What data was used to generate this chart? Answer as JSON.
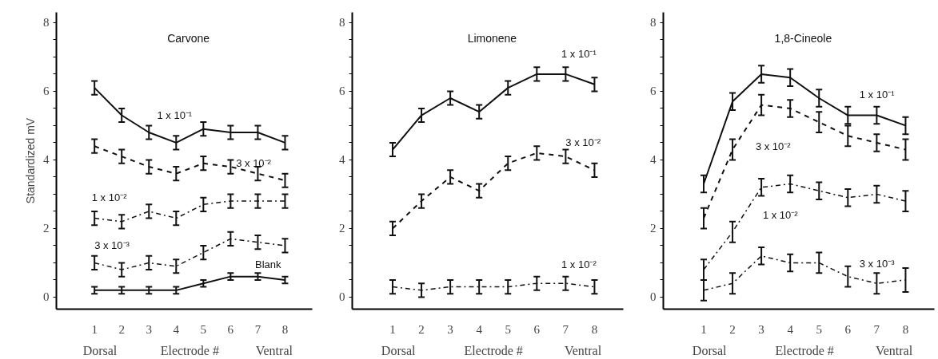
{
  "chart_data": [
    {
      "type": "line",
      "title": "Carvone",
      "ylabel": "Standardized mV",
      "x": [
        1,
        2,
        3,
        4,
        5,
        6,
        7,
        8
      ],
      "xlim": [
        -0.4,
        9.0
      ],
      "ylim": [
        -0.35,
        8.3
      ],
      "xticks": [
        1,
        2,
        3,
        4,
        5,
        6,
        7,
        8
      ],
      "yticks": [
        0,
        {
          "value": 0.5,
          "label": null
        },
        {
          "value": 1,
          "label": null
        },
        {
          "value": 1.5,
          "label": null
        },
        2,
        {
          "value": 2.5,
          "label": null
        },
        {
          "value": 3,
          "label": null
        },
        {
          "value": 3.5,
          "label": null
        },
        4,
        {
          "value": 4.5,
          "label": null
        },
        {
          "value": 5,
          "label": null
        },
        {
          "value": 5.5,
          "label": null
        },
        6,
        {
          "value": 6.5,
          "label": null
        },
        {
          "value": 7,
          "label": null
        },
        {
          "value": 7.5,
          "label": null
        },
        8
      ],
      "series": [
        {
          "name": "1 x 10⁻¹",
          "color": "#111111",
          "line_style": "solid",
          "values": [
            6.1,
            5.3,
            4.8,
            4.5,
            4.9,
            4.8,
            4.8,
            4.5
          ],
          "errors": [
            0.2,
            0.2,
            0.2,
            0.2,
            0.2,
            0.2,
            0.2,
            0.2
          ]
        },
        {
          "name": "3 x 10⁻²",
          "color": "#111111",
          "line_style": "dashed",
          "values": [
            4.4,
            4.1,
            3.8,
            3.6,
            3.9,
            3.8,
            3.6,
            3.4
          ],
          "errors": [
            0.2,
            0.2,
            0.2,
            0.2,
            0.2,
            0.2,
            0.2,
            0.2
          ]
        },
        {
          "name": "1 x 10⁻²",
          "color": "#111111",
          "line_style": "dotted",
          "values": [
            2.3,
            2.2,
            2.5,
            2.3,
            2.7,
            2.8,
            2.8,
            2.8
          ],
          "errors": [
            0.2,
            0.2,
            0.2,
            0.2,
            0.2,
            0.2,
            0.2,
            0.2
          ]
        },
        {
          "name": "3 x 10⁻³",
          "color": "#111111",
          "line_style": "dotted",
          "values": [
            1.0,
            0.8,
            1.0,
            0.9,
            1.3,
            1.7,
            1.6,
            1.5
          ],
          "errors": [
            0.2,
            0.2,
            0.2,
            0.2,
            0.2,
            0.2,
            0.2,
            0.2
          ]
        },
        {
          "name": "Blank",
          "color": "#111111",
          "line_style": "solid",
          "values": [
            0.2,
            0.2,
            0.2,
            0.2,
            0.4,
            0.6,
            0.6,
            0.5
          ],
          "errors": [
            0.1,
            0.1,
            0.1,
            0.1,
            0.1,
            0.1,
            0.1,
            0.1
          ]
        }
      ],
      "xlabel": "Electrode #",
      "annotations": [
        "Dorsal",
        "Ventral"
      ]
    },
    {
      "type": "line",
      "title": "Limonene",
      "x": [
        1,
        2,
        3,
        4,
        5,
        6,
        7,
        8
      ],
      "xlim": [
        -0.4,
        9.0
      ],
      "ylim": [
        -0.35,
        8.3
      ],
      "xticks": [
        1,
        2,
        3,
        4,
        5,
        6,
        7,
        8
      ],
      "yticks": [
        0,
        {
          "value": 0.5,
          "label": null
        },
        {
          "value": 1,
          "label": null
        },
        {
          "value": 1.5,
          "label": null
        },
        2,
        {
          "value": 2.5,
          "label": null
        },
        {
          "value": 3,
          "label": null
        },
        {
          "value": 3.5,
          "label": null
        },
        4,
        {
          "value": 4.5,
          "label": null
        },
        {
          "value": 5,
          "label": null
        },
        {
          "value": 5.5,
          "label": null
        },
        6,
        {
          "value": 6.5,
          "label": null
        },
        {
          "value": 7,
          "label": null
        },
        {
          "value": 7.5,
          "label": null
        },
        8
      ],
      "series": [
        {
          "name": "1 x 10⁻¹",
          "color": "#111111",
          "line_style": "solid",
          "values": [
            4.3,
            5.3,
            5.8,
            5.4,
            6.1,
            6.5,
            6.5,
            6.2
          ],
          "errors": [
            0.2,
            0.2,
            0.2,
            0.2,
            0.2,
            0.2,
            0.2,
            0.2
          ]
        },
        {
          "name": "3 x 10⁻²",
          "color": "#111111",
          "line_style": "dashed",
          "values": [
            2.0,
            2.8,
            3.5,
            3.1,
            3.9,
            4.2,
            4.1,
            3.7
          ],
          "errors": [
            0.2,
            0.2,
            0.2,
            0.2,
            0.2,
            0.2,
            0.2,
            0.2
          ]
        },
        {
          "name": "1 x 10⁻²",
          "color": "#111111",
          "line_style": "dotted",
          "values": [
            0.3,
            0.2,
            0.3,
            0.3,
            0.3,
            0.4,
            0.4,
            0.3
          ],
          "errors": [
            0.2,
            0.2,
            0.2,
            0.2,
            0.2,
            0.2,
            0.2,
            0.2
          ]
        }
      ],
      "xlabel": "Electrode #",
      "annotations": [
        "Dorsal",
        "Ventral"
      ]
    },
    {
      "type": "line",
      "title": "1,8-Cineole",
      "x": [
        1,
        2,
        3,
        4,
        5,
        6,
        7,
        8
      ],
      "xlim": [
        -0.4,
        9.0
      ],
      "ylim": [
        -0.35,
        8.3
      ],
      "xticks": [
        1,
        2,
        3,
        4,
        5,
        6,
        7,
        8
      ],
      "yticks": [
        0,
        {
          "value": 0.5,
          "label": null
        },
        {
          "value": 1,
          "label": null
        },
        {
          "value": 1.5,
          "label": null
        },
        2,
        {
          "value": 2.5,
          "label": null
        },
        {
          "value": 3,
          "label": null
        },
        {
          "value": 3.5,
          "label": null
        },
        4,
        {
          "value": 4.5,
          "label": null
        },
        {
          "value": 5,
          "label": null
        },
        {
          "value": 5.5,
          "label": null
        },
        6,
        {
          "value": 6.5,
          "label": null
        },
        {
          "value": 7,
          "label": null
        },
        {
          "value": 7.5,
          "label": null
        },
        8
      ],
      "series": [
        {
          "name": "1 x 10⁻¹",
          "color": "#111111",
          "line_style": "solid",
          "values": [
            3.3,
            5.7,
            6.5,
            6.4,
            5.8,
            5.3,
            5.3,
            5.0
          ],
          "errors": [
            0.25,
            0.25,
            0.25,
            0.25,
            0.25,
            0.25,
            0.25,
            0.25
          ]
        },
        {
          "name": "3 x 10⁻²",
          "color": "#111111",
          "line_style": "dashed",
          "values": [
            2.3,
            4.3,
            5.6,
            5.5,
            5.1,
            4.7,
            4.5,
            4.3
          ],
          "errors": [
            0.3,
            0.3,
            0.3,
            0.25,
            0.3,
            0.3,
            0.25,
            0.3
          ]
        },
        {
          "name": "1 x 10⁻²",
          "color": "#111111",
          "line_style": "dotted",
          "values": [
            0.8,
            1.9,
            3.2,
            3.3,
            3.1,
            2.9,
            3.0,
            2.8
          ],
          "errors": [
            0.3,
            0.3,
            0.25,
            0.25,
            0.25,
            0.25,
            0.25,
            0.3
          ]
        },
        {
          "name": "3 x 10⁻³",
          "color": "#111111",
          "line_style": "dotted",
          "values": [
            0.2,
            0.4,
            1.2,
            1.0,
            1.0,
            0.6,
            0.4,
            0.5
          ],
          "errors": [
            0.3,
            0.3,
            0.25,
            0.25,
            0.3,
            0.3,
            0.3,
            0.35
          ]
        }
      ],
      "xlabel": "Electrode #",
      "annotations": [
        "Dorsal",
        "Ventral"
      ]
    }
  ]
}
